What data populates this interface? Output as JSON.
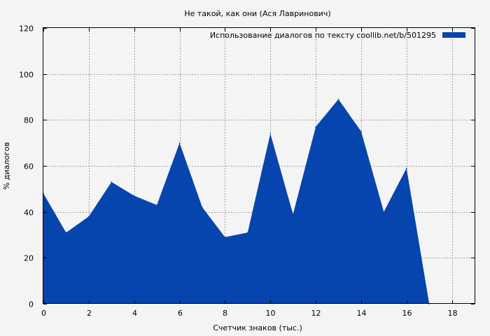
{
  "chart_data": {
    "type": "area",
    "title": "Не такой, как они (Ася Лавринович)",
    "xlabel": "Счетчик знаков (тыс.)",
    "ylabel": "% диалогов",
    "xlim": [
      0,
      19
    ],
    "ylim": [
      0,
      120
    ],
    "xticks": [
      "0",
      "2",
      "4",
      "6",
      "8",
      "10",
      "12",
      "14",
      "16",
      "18"
    ],
    "yticks": [
      "0",
      "20",
      "40",
      "60",
      "80",
      "100",
      "120"
    ],
    "grid": true,
    "legend_position": "top-right",
    "series": [
      {
        "name": "Использование диалогов по тексту  coollib.net/b/501295",
        "color": "#0645ad",
        "x": [
          0,
          1,
          2,
          3,
          4,
          5,
          6,
          7,
          8,
          9,
          10,
          11,
          12,
          13,
          14,
          15,
          16,
          17
        ],
        "values": [
          48,
          31,
          38,
          53,
          47,
          43,
          70,
          42,
          29,
          31,
          74,
          39,
          77,
          89,
          75,
          40,
          59,
          0
        ]
      }
    ]
  }
}
